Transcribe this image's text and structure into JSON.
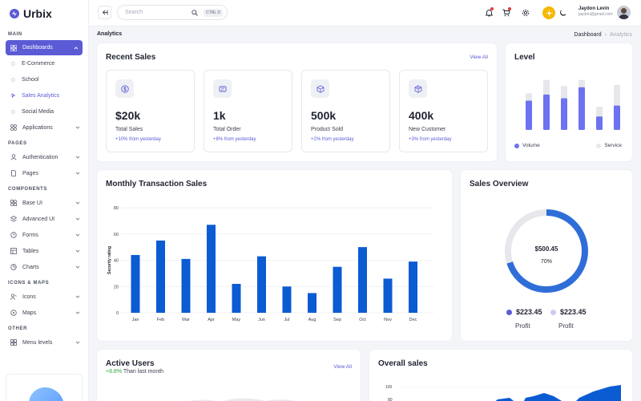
{
  "app": {
    "name": "Urbix"
  },
  "sidebar": {
    "sections": {
      "main": "MAIN",
      "pages": "PAGES",
      "components": "COMPONENTS",
      "icons_maps": "ICONS & MAPS",
      "other": "OTHER"
    },
    "dashboards": "Dashboards",
    "dashboard_sub": [
      "E-Commerce",
      "School",
      "Sales Analytics",
      "Social Media"
    ],
    "applications": "Applications",
    "authentication": "Authentication",
    "pages": "Pages",
    "base_ui": "Base UI",
    "advanced_ui": "Advanced UI",
    "forms": "Forms",
    "tables": "Tables",
    "charts": "Charts",
    "icons": "Icons",
    "maps": "Maps",
    "menu_levels": "Menu levels"
  },
  "header": {
    "search_placeholder": "Search",
    "shortcut": "CTRL D",
    "user_name": "Jaydon Levin",
    "user_email": "jaydon@gmail.com"
  },
  "breadcrumb": {
    "page_title": "Analytics",
    "root": "Dashboard",
    "current": "Analytics"
  },
  "recent_sales": {
    "title": "Recent Sales",
    "view_all": "View All",
    "stats": [
      {
        "value": "$20k",
        "label": "Total Sales",
        "change": "+10% from yesterday",
        "icon": "dollar-icon"
      },
      {
        "value": "1k",
        "label": "Total Order",
        "change": "+8% from yesterday",
        "icon": "receipt-icon"
      },
      {
        "value": "500k",
        "label": "Product Sold",
        "change": "+2% from yesterday",
        "icon": "box-icon"
      },
      {
        "value": "400k",
        "label": "New Customer",
        "change": "+3% from yesterday",
        "icon": "package-icon"
      }
    ]
  },
  "level": {
    "title": "Level",
    "legend": [
      "Volume",
      "Service"
    ],
    "colors": {
      "volume": "#6c72f0",
      "service": "#e6e7eb"
    },
    "bars": [
      {
        "volume": 48,
        "service": 60
      },
      {
        "volume": 58,
        "service": 82
      },
      {
        "volume": 52,
        "service": 72
      },
      {
        "volume": 70,
        "service": 82
      },
      {
        "volume": 22,
        "service": 38
      },
      {
        "volume": 40,
        "service": 74
      }
    ]
  },
  "chart_data": [
    {
      "type": "bar",
      "title": "Monthly Transaction Sales",
      "ylabel": "Security rating",
      "xlabel": "",
      "categories": [
        "Jan",
        "Feb",
        "Mar",
        "Apr",
        "May",
        "Jun",
        "Jul",
        "Aug",
        "Sep",
        "Oct",
        "Nov",
        "Dec"
      ],
      "values": [
        44,
        55,
        41,
        67,
        22,
        43,
        20,
        15,
        35,
        50,
        26,
        39
      ],
      "ylim": [
        0,
        80
      ],
      "yticks": [
        0,
        20,
        40,
        60,
        80
      ],
      "grid": true,
      "color": "#0b5bd3"
    },
    {
      "type": "pie",
      "title": "Sales Overview",
      "center_value": "$500.45",
      "center_percent": "70%",
      "values": [
        70,
        30
      ],
      "colors": [
        "#2f6ed8",
        "#e7e8ec"
      ],
      "legend": [
        {
          "value": "$223.45",
          "label": "Profit",
          "color": "#5b5bd6"
        },
        {
          "value": "$223.45",
          "label": "Profit",
          "color": "#c9ccf5"
        }
      ]
    }
  ],
  "active_users": {
    "title": "Active Users",
    "change": "+8.8%",
    "change_suffix": " Than last month",
    "view_all": "View All"
  },
  "overall_sales": {
    "title": "Overall sales",
    "ytick_top": "100",
    "ytick_2": "80"
  }
}
